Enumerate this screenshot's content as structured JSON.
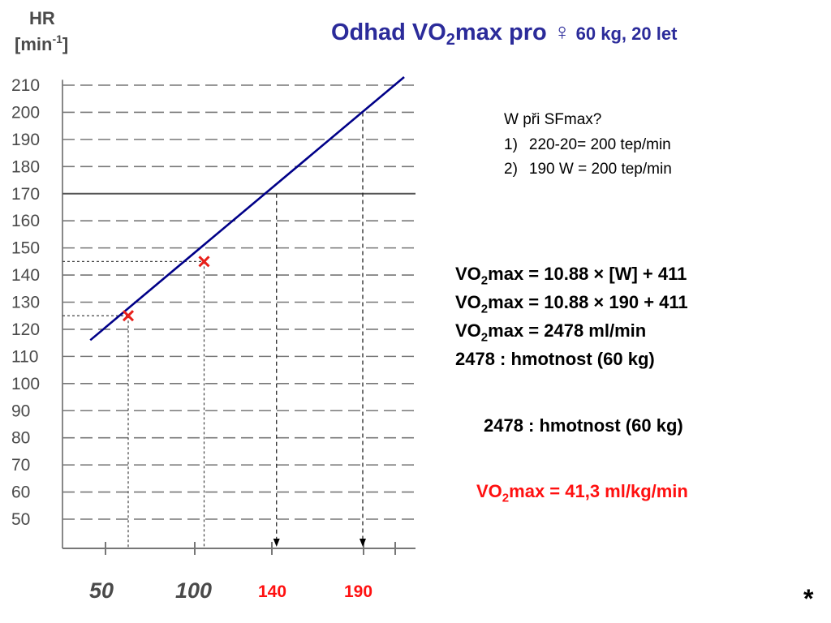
{
  "title": {
    "main": "Odhad VO",
    "main_sub": "2",
    "main_end": "max pro ♀",
    "detail": " 60 kg, 20 let"
  },
  "chart_data": {
    "type": "line",
    "y_axis_label": "HR",
    "y_axis_unit": "[min-1]",
    "y_ticks": [
      210,
      200,
      190,
      180,
      170,
      160,
      150,
      140,
      130,
      120,
      110,
      100,
      90,
      80,
      70,
      60,
      50
    ],
    "x_ticks_printed": [
      {
        "value": 50,
        "label": "50",
        "style": "gray"
      },
      {
        "value": 100,
        "label": "100",
        "style": "gray"
      },
      {
        "value": 140,
        "label": "140",
        "style": "red"
      },
      {
        "value": 190,
        "label": "190",
        "style": "red"
      }
    ],
    "regression_line": {
      "x": [
        32,
        214
      ],
      "y": [
        116,
        213
      ],
      "color": "#000088"
    },
    "measured_points": [
      {
        "x": 54,
        "y": 125
      },
      {
        "x": 98,
        "y": 145
      }
    ],
    "dropdown_markers": [
      {
        "x": 140,
        "y": 170,
        "arrow": true
      },
      {
        "x": 190,
        "y": 200,
        "arrow": true
      }
    ],
    "xlim": [
      25,
      230
    ],
    "ylim": [
      37,
      215
    ],
    "grid": true
  },
  "notes": {
    "question": "W při SFmax?",
    "items": [
      {
        "num": "1)",
        "text": "220-20= 200 tep/min"
      },
      {
        "num": "2)",
        "text": "190 W = 200 tep/min"
      }
    ]
  },
  "equations": [
    {
      "pre": "VO",
      "sub": "2",
      "post": "max = 10.88 × [W] + 411"
    },
    {
      "pre": "VO",
      "sub": "2",
      "post": "max = 10.88 × 190 + 411"
    },
    {
      "pre": "VO",
      "sub": "2",
      "post": "max = 2478 ml/min"
    },
    {
      "pre": "",
      "sub": "",
      "post": "2478 : hmotnost (60 kg)"
    }
  ],
  "equation_repeat": "2478 : hmotnost (60 kg)",
  "result": {
    "pre": "VO",
    "sub": "2",
    "post": "max = 41,3 ml/kg/min"
  },
  "footer_mark": "*"
}
